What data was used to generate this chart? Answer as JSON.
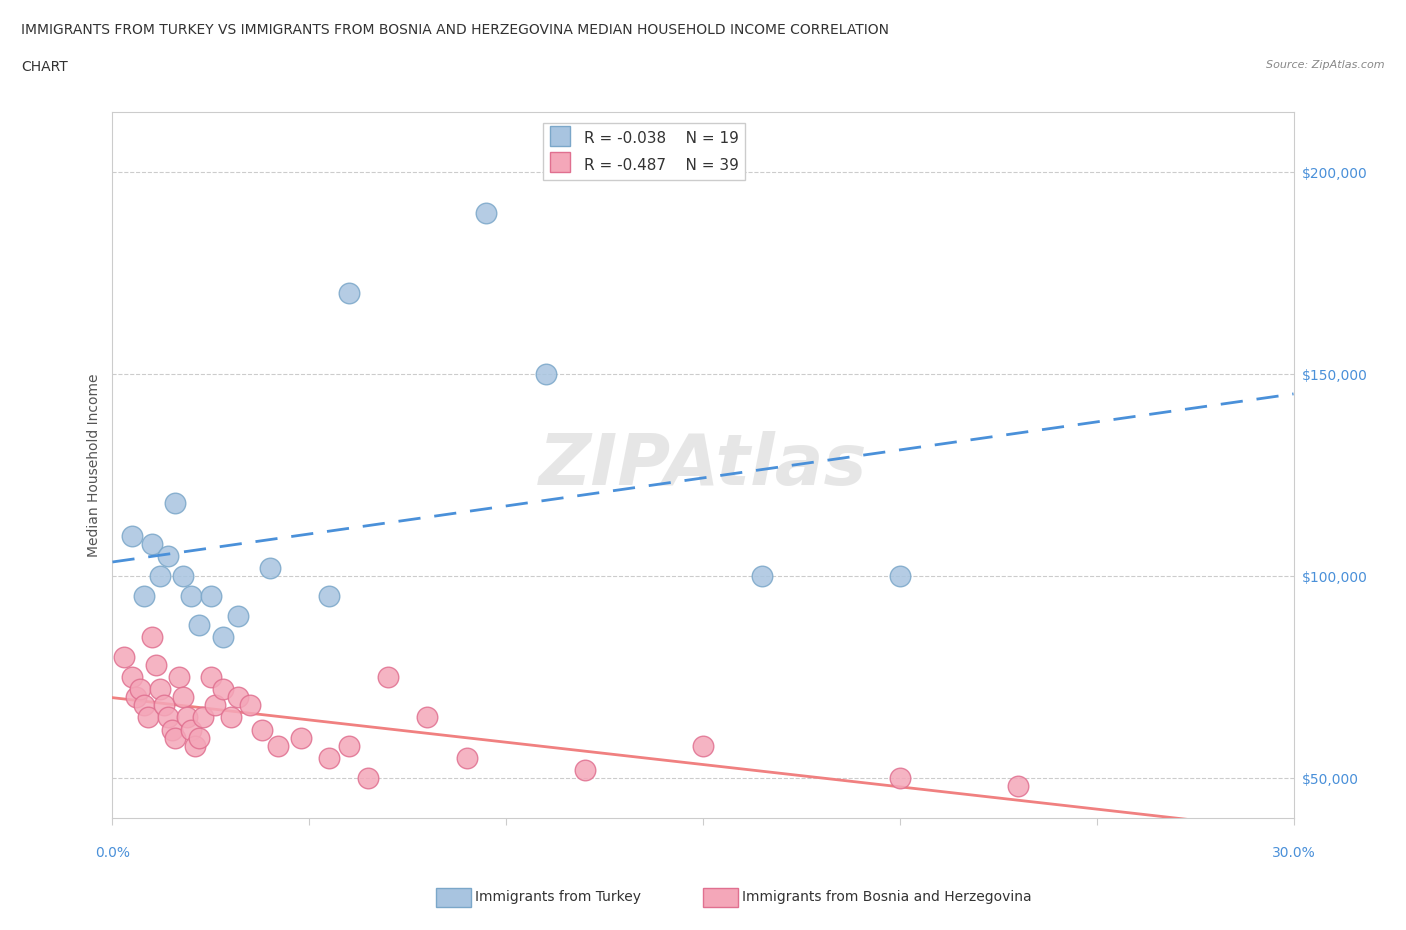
{
  "title_line1": "IMMIGRANTS FROM TURKEY VS IMMIGRANTS FROM BOSNIA AND HERZEGOVINA MEDIAN HOUSEHOLD INCOME CORRELATION",
  "title_line2": "CHART",
  "source_text": "Source: ZipAtlas.com",
  "ylabel": "Median Household Income",
  "xlim": [
    0.0,
    0.3
  ],
  "ylim": [
    40000,
    215000
  ],
  "xticks": [
    0.0,
    0.05,
    0.1,
    0.15,
    0.2,
    0.25,
    0.3
  ],
  "ytick_positions": [
    50000,
    100000,
    150000,
    200000
  ],
  "ytick_labels": [
    "$50,000",
    "$100,000",
    "$150,000",
    "$200,000"
  ],
  "turkey_color": "#a8c4e0",
  "turkey_edge_color": "#7ba7c9",
  "bosnia_color": "#f4a7b9",
  "bosnia_edge_color": "#e07090",
  "turkey_line_color": "#4a90d9",
  "bosnia_line_color": "#f08080",
  "legend_R_turkey": "R = -0.038",
  "legend_N_turkey": "N = 19",
  "legend_R_bosnia": "R = -0.487",
  "legend_N_bosnia": "N = 39",
  "legend_label_turkey": "Immigrants from Turkey",
  "legend_label_bosnia": "Immigrants from Bosnia and Herzegovina",
  "turkey_x": [
    0.005,
    0.008,
    0.01,
    0.012,
    0.014,
    0.016,
    0.018,
    0.02,
    0.022,
    0.025,
    0.028,
    0.032,
    0.04,
    0.055,
    0.06,
    0.095,
    0.11,
    0.165,
    0.2
  ],
  "turkey_y": [
    110000,
    95000,
    108000,
    100000,
    105000,
    118000,
    100000,
    95000,
    88000,
    95000,
    85000,
    90000,
    102000,
    95000,
    170000,
    190000,
    150000,
    100000,
    100000
  ],
  "bosnia_x": [
    0.003,
    0.005,
    0.006,
    0.007,
    0.008,
    0.009,
    0.01,
    0.011,
    0.012,
    0.013,
    0.014,
    0.015,
    0.016,
    0.017,
    0.018,
    0.019,
    0.02,
    0.021,
    0.022,
    0.023,
    0.025,
    0.026,
    0.028,
    0.03,
    0.032,
    0.035,
    0.038,
    0.042,
    0.048,
    0.055,
    0.06,
    0.065,
    0.07,
    0.08,
    0.09,
    0.12,
    0.15,
    0.2,
    0.23
  ],
  "bosnia_y": [
    80000,
    75000,
    70000,
    72000,
    68000,
    65000,
    85000,
    78000,
    72000,
    68000,
    65000,
    62000,
    60000,
    75000,
    70000,
    65000,
    62000,
    58000,
    60000,
    65000,
    75000,
    68000,
    72000,
    65000,
    70000,
    68000,
    62000,
    58000,
    60000,
    55000,
    58000,
    50000,
    75000,
    65000,
    55000,
    52000,
    58000,
    50000,
    48000
  ],
  "grid_color": "#cccccc",
  "bg_color": "#ffffff",
  "title_color": "#333333",
  "tick_color": "#4a90d9"
}
